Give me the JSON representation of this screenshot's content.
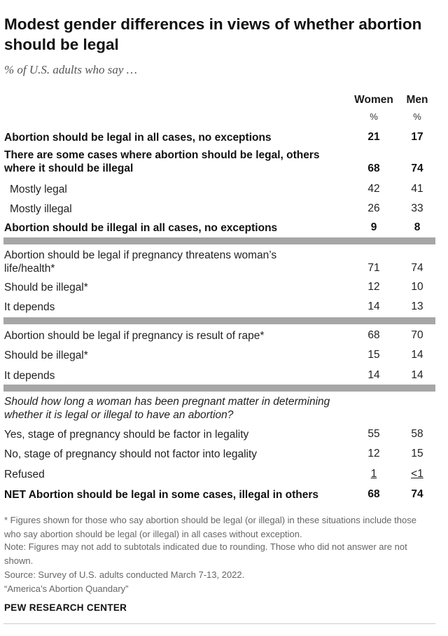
{
  "title": "Modest gender differences in views of whether abortion should be legal",
  "subtitle": "% of U.S. adults who say …",
  "columns": {
    "women": "Women",
    "men": "Men",
    "unit": "%"
  },
  "chart_data": {
    "type": "table",
    "title": "Modest gender differences in views of whether abortion should be legal",
    "subtitle": "% of U.S. adults who say …",
    "columns": [
      "Women",
      "Men"
    ],
    "rows": [
      {
        "label": "Abortion should be legal in all cases, no exceptions",
        "women": "21",
        "men": "17"
      },
      {
        "label": "There are some cases where abortion should be legal, others where it should be illegal",
        "women": "68",
        "men": "74"
      },
      {
        "label": "Mostly legal",
        "women": "42",
        "men": "41"
      },
      {
        "label": "Mostly illegal",
        "women": "26",
        "men": "33"
      },
      {
        "label": "Abortion should be illegal in all cases, no exceptions",
        "women": "9",
        "men": "8"
      },
      {
        "label": "Abortion should be legal if pregnancy threatens woman’s life/health*",
        "women": "71",
        "men": "74"
      },
      {
        "label": "Should be illegal*",
        "women": "12",
        "men": "10"
      },
      {
        "label": "It depends",
        "women": "14",
        "men": "13"
      },
      {
        "label": "Abortion should be legal if pregnancy is result of rape*",
        "women": "68",
        "men": "70"
      },
      {
        "label": "Should be illegal*",
        "women": "15",
        "men": "14"
      },
      {
        "label": "It depends",
        "women": "14",
        "men": "14"
      },
      {
        "label": "Should how long a woman has been pregnant matter in determining whether it is legal or illegal to have an abortion?",
        "women": "",
        "men": ""
      },
      {
        "label": "Yes, stage of pregnancy should be factor in legality",
        "women": "55",
        "men": "58"
      },
      {
        "label": "No, stage of pregnancy should not factor into legality",
        "women": "12",
        "men": "15"
      },
      {
        "label": "Refused",
        "women": "1",
        "men": "<1"
      },
      {
        "label": "NET Abortion should be legal in some cases, illegal in others",
        "women": "68",
        "men": "74"
      }
    ]
  },
  "notes": {
    "footnote": "* Figures shown for those who say abortion should be legal (or illegal) in these situations include those who say abortion should be legal (or illegal) in all cases without exception.",
    "note": "Note: Figures may not add to subtotals indicated due to rounding. Those who did not answer are not shown.",
    "source": "Source: Survey of U.S. adults conducted March 7-13, 2022.",
    "report": "“America’s Abortion Quandary”"
  },
  "brand": "PEW RESEARCH CENTER"
}
